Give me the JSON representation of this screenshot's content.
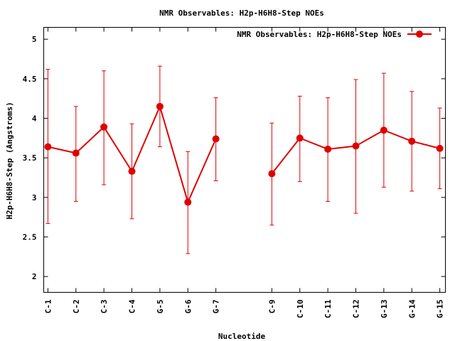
{
  "chart_data": {
    "type": "line",
    "title": "NMR Observables: H2p-H6H8-Step NOEs",
    "xlabel": "Nucleotide",
    "ylabel": "H2p-H6H8-Step (Angstroms)",
    "ylim": [
      1.8,
      5.15
    ],
    "yticks": [
      2,
      2.5,
      3,
      3.5,
      4,
      4.5,
      5
    ],
    "ytick_labels": [
      "2",
      "2.5",
      "3",
      "3.5",
      "4",
      "4.5",
      "5"
    ],
    "categories": [
      "C-1",
      "C-2",
      "C-3",
      "C-4",
      "G-5",
      "G-6",
      "G-7",
      "C-9",
      "C-10",
      "C-11",
      "C-12",
      "G-13",
      "G-14",
      "G-15"
    ],
    "x_positions": [
      1,
      2,
      3,
      4,
      5,
      6,
      7,
      9,
      10,
      11,
      12,
      13,
      14,
      15
    ],
    "xlim": [
      0.85,
      15.2
    ],
    "grid": false,
    "legend_position": "top-right",
    "color": "#e00000",
    "series": [
      {
        "name": "NMR Observables: H2p-H6H8-Step NOEs",
        "segments": [
          [
            0,
            7
          ],
          [
            7,
            14
          ]
        ],
        "values": [
          3.64,
          3.56,
          3.89,
          3.33,
          4.15,
          2.94,
          3.74,
          3.3,
          3.75,
          3.61,
          3.65,
          3.85,
          3.71,
          3.62
        ],
        "err_low": [
          2.67,
          2.95,
          3.16,
          2.73,
          3.64,
          2.29,
          3.21,
          2.65,
          3.2,
          2.95,
          2.8,
          3.13,
          3.08,
          3.11
        ],
        "err_high": [
          4.62,
          4.15,
          4.6,
          3.93,
          4.66,
          3.58,
          4.26,
          3.94,
          4.28,
          4.26,
          4.49,
          4.57,
          4.34,
          4.13
        ]
      }
    ]
  }
}
